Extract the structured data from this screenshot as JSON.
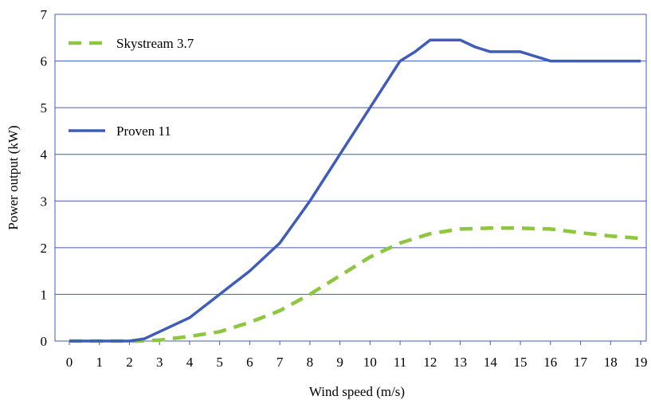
{
  "chart_data": {
    "type": "line",
    "title": "",
    "xlabel": "Wind speed (m/s)",
    "ylabel": "Power output (kW)",
    "xlim": [
      0,
      19
    ],
    "ylim": [
      0,
      7
    ],
    "x_ticks": [
      0,
      1,
      2,
      3,
      4,
      5,
      6,
      7,
      8,
      9,
      10,
      11,
      12,
      13,
      14,
      15,
      16,
      17,
      18,
      19
    ],
    "y_ticks": [
      0,
      1,
      2,
      3,
      4,
      5,
      6,
      7
    ],
    "grid": "horizontal",
    "series": [
      {
        "name": "Skystream 3.7",
        "style": "dashed",
        "color": "#8DC63F",
        "x": [
          0,
          1,
          2,
          2.3,
          3,
          4,
          5,
          6,
          7,
          8,
          9,
          10,
          11,
          12,
          13,
          14,
          15,
          16,
          17,
          18,
          19
        ],
        "y": [
          0,
          0,
          0,
          0,
          0.02,
          0.1,
          0.2,
          0.4,
          0.65,
          1.0,
          1.4,
          1.8,
          2.1,
          2.3,
          2.4,
          2.42,
          2.42,
          2.4,
          2.32,
          2.25,
          2.2
        ]
      },
      {
        "name": "Proven 11",
        "style": "solid",
        "color": "#3F5CB8",
        "x": [
          0,
          1,
          2,
          2.5,
          3,
          4,
          5,
          6,
          7,
          8,
          9,
          10,
          11,
          11.5,
          12,
          13,
          13.5,
          14,
          15,
          16,
          17,
          18,
          19
        ],
        "y": [
          0,
          0,
          0,
          0.05,
          0.2,
          0.5,
          1.0,
          1.5,
          2.1,
          3.0,
          4.0,
          5.0,
          6.0,
          6.2,
          6.45,
          6.45,
          6.3,
          6.2,
          6.2,
          6.0,
          6.0,
          6.0,
          6.0
        ]
      }
    ],
    "legend": [
      {
        "label": "Skystream 3.7",
        "series": 0
      },
      {
        "label": "Proven 11",
        "series": 1
      }
    ]
  }
}
